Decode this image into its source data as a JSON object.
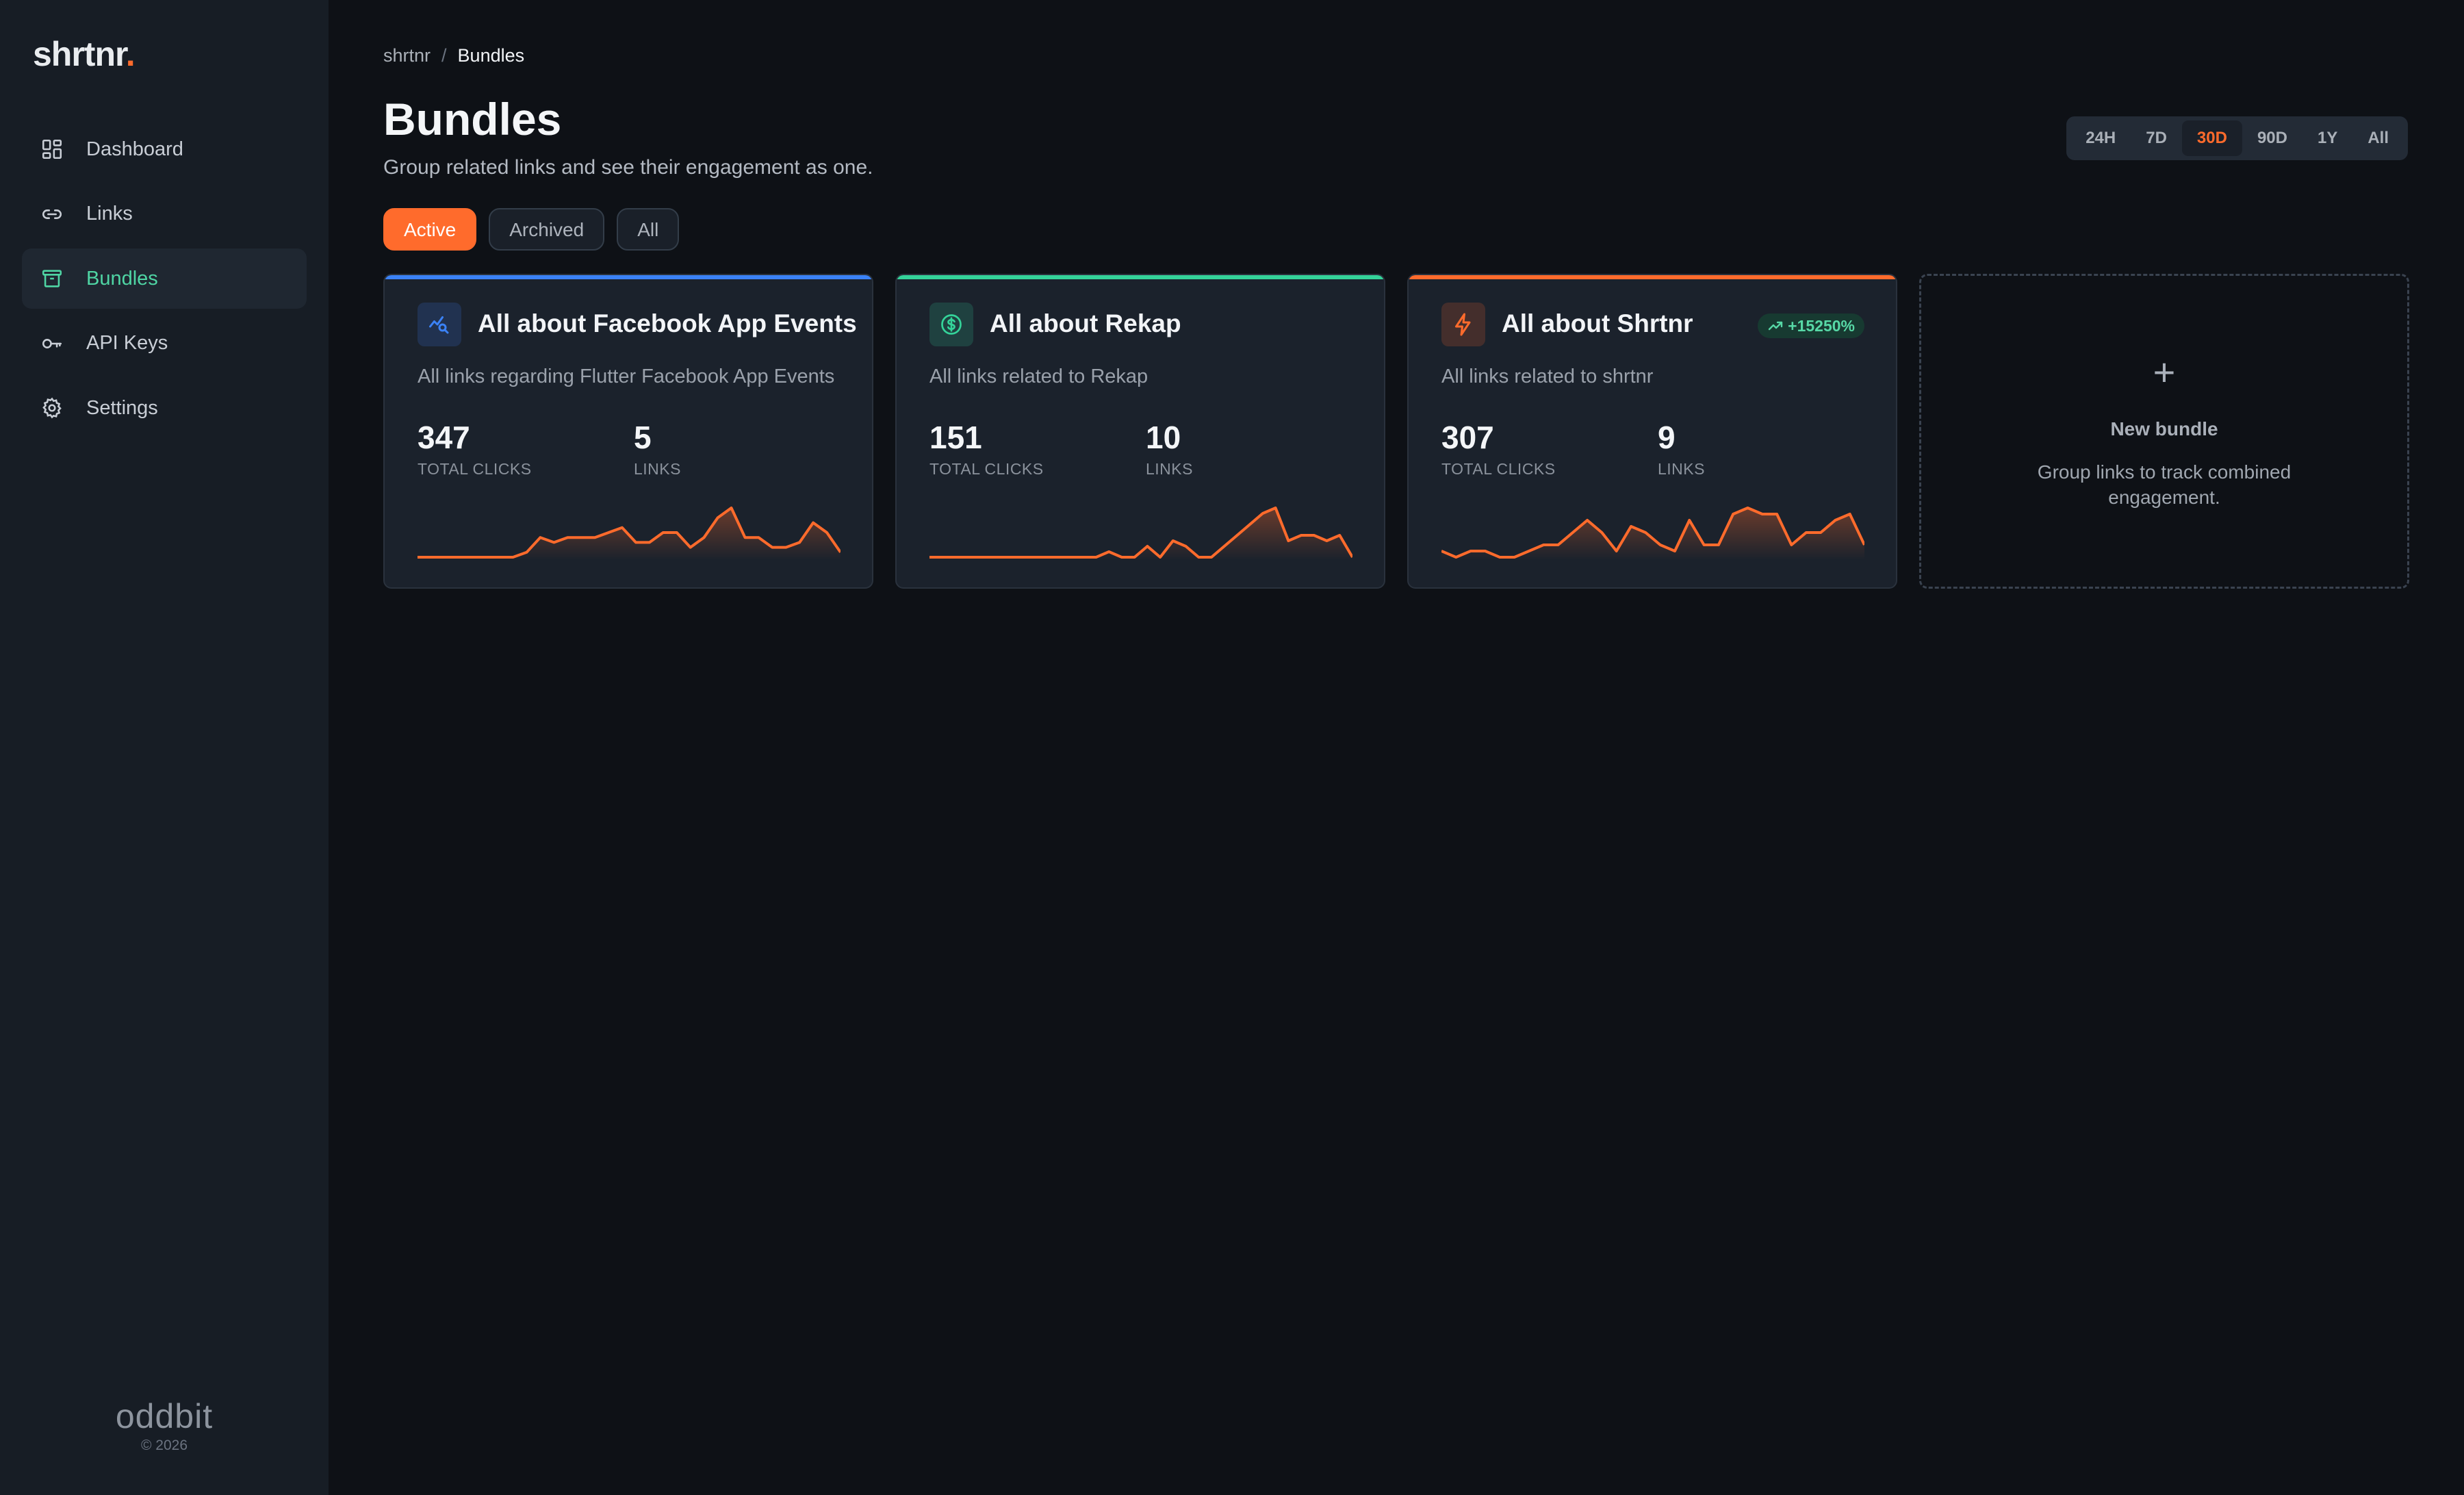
{
  "app": {
    "logo_text": "shrtnr",
    "logo_dot": ".",
    "accent": "#ff6b2c",
    "active_nav_color": "#4fd5a4"
  },
  "sidebar": {
    "items": [
      {
        "label": "Dashboard",
        "icon": "dashboard-icon",
        "active": false
      },
      {
        "label": "Links",
        "icon": "link-icon",
        "active": false
      },
      {
        "label": "Bundles",
        "icon": "archive-box-icon",
        "active": true
      },
      {
        "label": "API Keys",
        "icon": "key-icon",
        "active": false
      },
      {
        "label": "Settings",
        "icon": "gear-icon",
        "active": false
      }
    ],
    "footer_brand": "oddbit",
    "footer_copy": "© 2026"
  },
  "breadcrumb": {
    "root": "shrtnr",
    "separator": "/",
    "current": "Bundles"
  },
  "page": {
    "title": "Bundles",
    "subtitle": "Group related links and see their engagement as one."
  },
  "range": {
    "options": [
      "24H",
      "7D",
      "30D",
      "90D",
      "1Y",
      "All"
    ],
    "selected": "30D"
  },
  "filters": {
    "options": [
      "Active",
      "Archived",
      "All"
    ],
    "selected": "Active"
  },
  "bundles": [
    {
      "title": "All about Facebook App Events",
      "description": "All links regarding Flutter Facebook App Events",
      "total_clicks": "347",
      "clicks_label": "TOTAL CLICKS",
      "links": "5",
      "links_label": "LINKS",
      "color": "#3b82f6",
      "icon": "chart-search-icon",
      "badge": "",
      "sparkline": [
        0,
        0,
        0,
        0,
        0,
        0,
        0,
        0,
        1,
        4,
        3,
        4,
        4,
        4,
        5,
        6,
        3,
        3,
        5,
        5,
        2,
        4,
        8,
        10,
        4,
        4,
        2,
        2,
        3,
        7,
        5,
        1
      ]
    },
    {
      "title": "All about Rekap",
      "description": "All links related to Rekap",
      "total_clicks": "151",
      "clicks_label": "TOTAL CLICKS",
      "links": "10",
      "links_label": "LINKS",
      "color": "#34d399",
      "icon": "dollar-circle-icon",
      "badge": "",
      "sparkline": [
        0,
        0,
        0,
        0,
        0,
        0,
        0,
        0,
        0,
        0,
        0,
        0,
        0,
        0,
        1,
        0,
        0,
        2,
        0,
        3,
        2,
        0,
        0,
        2,
        4,
        6,
        8,
        9,
        3,
        4,
        4,
        3,
        4,
        0
      ]
    },
    {
      "title": "All about Shrtnr",
      "description": "All links related to shrtnr",
      "total_clicks": "307",
      "clicks_label": "TOTAL CLICKS",
      "links": "9",
      "links_label": "LINKS",
      "color": "#ff6b2c",
      "icon": "lightning-icon",
      "badge": "+15250%",
      "sparkline": [
        1,
        0,
        1,
        1,
        0,
        0,
        1,
        2,
        2,
        4,
        6,
        4,
        1,
        5,
        4,
        2,
        1,
        6,
        2,
        2,
        7,
        8,
        7,
        7,
        2,
        4,
        4,
        6,
        7,
        2
      ]
    }
  ],
  "new_bundle": {
    "plus": "+",
    "title": "New bundle",
    "description": "Group links to track combined engagement."
  }
}
